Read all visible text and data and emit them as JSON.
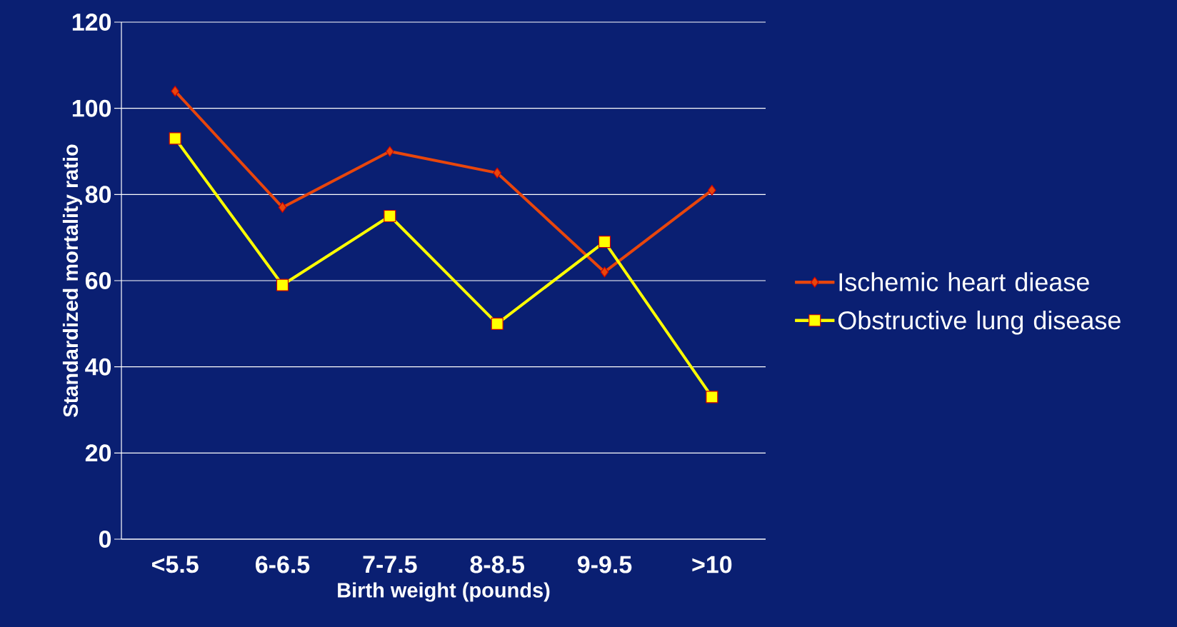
{
  "chart_data": {
    "type": "line",
    "xlabel": "Birth weight (pounds)",
    "ylabel": "Standardized mortality ratio",
    "categories": [
      "<5.5",
      "6-6.5",
      "7-7.5",
      "8-8.5",
      "9-9.5",
      ">10"
    ],
    "series": [
      {
        "name": "Ischemic heart diease",
        "color": "#e8460c",
        "marker": "diamond",
        "values": [
          104,
          77,
          90,
          85,
          62,
          81
        ]
      },
      {
        "name": "Obstructive lung disease",
        "color": "#ffff00",
        "marker": "square",
        "values": [
          93,
          59,
          75,
          50,
          69,
          33
        ]
      }
    ],
    "ylim": [
      0,
      120
    ],
    "yticks": [
      0,
      20,
      40,
      60,
      80,
      100,
      120
    ],
    "grid": "y",
    "legend": "right",
    "line_style": "solid"
  }
}
